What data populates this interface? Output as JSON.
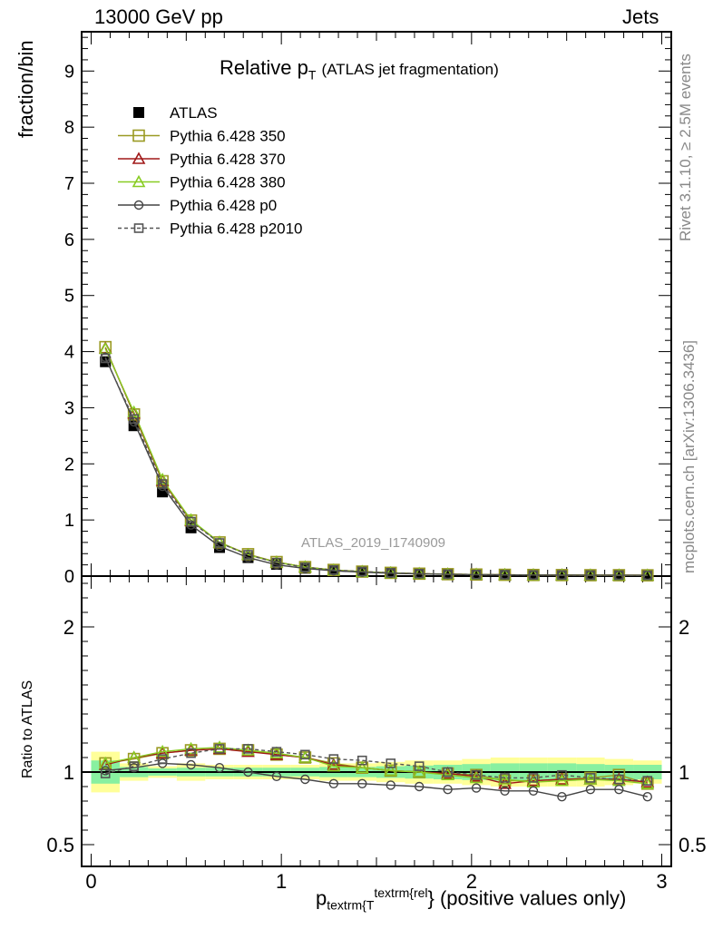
{
  "header": {
    "left": "13000 GeV pp",
    "right": "Jets"
  },
  "side_labels": {
    "rivet": "Rivet 3.1.10, ≥ 2.5M events",
    "mcplots": "mcplots.cern.ch [arXiv:1306.3436]"
  },
  "watermark": "ATLAS_2019_I1740909",
  "chart_data": [
    {
      "type": "line",
      "panel": "main",
      "title": "Relative p",
      "title_sub": "T",
      "title_suffix": "(ATLAS jet fragmentation)",
      "ylabel": "fraction/bin",
      "xlim": [
        -0.05,
        3.05
      ],
      "ylim": [
        0,
        9.7
      ],
      "y_ticks": [
        "0",
        "1",
        "2",
        "3",
        "4",
        "5",
        "6",
        "7",
        "8",
        "9"
      ],
      "x": [
        0.075,
        0.225,
        0.375,
        0.525,
        0.675,
        0.825,
        0.975,
        1.125,
        1.275,
        1.425,
        1.575,
        1.725,
        1.875,
        2.025,
        2.175,
        2.325,
        2.475,
        2.625,
        2.775,
        2.925
      ],
      "series": [
        {
          "name": "ATLAS",
          "color": "#000000",
          "marker": "filled-square",
          "values": [
            3.82,
            2.68,
            1.5,
            0.86,
            0.51,
            0.33,
            0.21,
            0.14,
            0.1,
            0.075,
            0.055,
            0.042,
            0.034,
            0.028,
            0.024,
            0.021,
            0.019,
            0.017,
            0.016,
            0.015
          ]
        },
        {
          "name": "Pythia 6.428 350",
          "color": "#9a9a22",
          "marker": "open-square",
          "values": [
            4.08,
            2.88,
            1.69,
            0.99,
            0.6,
            0.39,
            0.25,
            0.16,
            0.11,
            0.08,
            0.058,
            0.043,
            0.034,
            0.028,
            0.023,
            0.02,
            0.018,
            0.016,
            0.016,
            0.014
          ]
        },
        {
          "name": "Pythia 6.428 370",
          "color": "#a01818",
          "marker": "open-triangle",
          "values": [
            4.06,
            2.9,
            1.7,
            0.99,
            0.6,
            0.38,
            0.245,
            0.16,
            0.105,
            0.078,
            0.056,
            0.042,
            0.034,
            0.028,
            0.022,
            0.02,
            0.018,
            0.016,
            0.015,
            0.014
          ]
        },
        {
          "name": "Pythia 6.428 380",
          "color": "#88cc22",
          "marker": "open-triangle",
          "values": [
            4.05,
            2.92,
            1.72,
            1.0,
            0.6,
            0.38,
            0.245,
            0.16,
            0.105,
            0.078,
            0.056,
            0.042,
            0.034,
            0.027,
            0.023,
            0.02,
            0.018,
            0.016,
            0.015,
            0.014
          ]
        },
        {
          "name": "Pythia 6.428 p0",
          "color": "#444444",
          "marker": "open-circle",
          "values": [
            3.9,
            2.75,
            1.6,
            0.91,
            0.53,
            0.33,
            0.2,
            0.135,
            0.093,
            0.069,
            0.05,
            0.038,
            0.03,
            0.025,
            0.021,
            0.018,
            0.016,
            0.015,
            0.014,
            0.013
          ]
        },
        {
          "name": "Pythia 6.428 p2010",
          "color": "#555555",
          "marker": "open-square-dashed",
          "values": [
            3.88,
            2.8,
            1.64,
            0.97,
            0.59,
            0.38,
            0.24,
            0.156,
            0.109,
            0.081,
            0.058,
            0.044,
            0.034,
            0.027,
            0.023,
            0.02,
            0.019,
            0.016,
            0.015,
            0.014
          ]
        }
      ]
    },
    {
      "type": "line",
      "panel": "ratio",
      "ylabel": "Ratio to ATLAS",
      "xlabel": "p",
      "xlabel_sub": "textrm{T",
      "xlabel_sup": "textrm{rel",
      "xlabel_suffix": "} (positive values only)",
      "xlim": [
        -0.05,
        3.05
      ],
      "ylim": [
        0.35,
        2.35
      ],
      "y_ticks": [
        0.5,
        1,
        2
      ],
      "y_tick_labels": [
        "0.5",
        "1",
        "2"
      ],
      "x_ticks": [
        0,
        1,
        2,
        3
      ],
      "x_tick_labels": [
        "0",
        "1",
        "2",
        "3"
      ],
      "x": [
        0.075,
        0.225,
        0.375,
        0.525,
        0.675,
        0.825,
        0.975,
        1.125,
        1.275,
        1.425,
        1.575,
        1.725,
        1.875,
        2.025,
        2.175,
        2.325,
        2.475,
        2.625,
        2.775,
        2.925
      ],
      "bands": {
        "x_edges": [
          0.0,
          0.15,
          0.3,
          0.45,
          0.6,
          0.75,
          0.9,
          1.05,
          1.2,
          1.35,
          1.5,
          1.65,
          1.8,
          1.95,
          2.1,
          2.25,
          2.4,
          2.55,
          2.7,
          2.85,
          3.0
        ],
        "yellow": [
          0.14,
          0.06,
          0.04,
          0.06,
          0.05,
          0.05,
          0.05,
          0.05,
          0.06,
          0.06,
          0.07,
          0.08,
          0.08,
          0.09,
          0.1,
          0.1,
          0.1,
          0.1,
          0.09,
          0.08
        ],
        "green": [
          0.08,
          0.035,
          0.025,
          0.03,
          0.03,
          0.03,
          0.03,
          0.03,
          0.035,
          0.035,
          0.04,
          0.045,
          0.05,
          0.055,
          0.06,
          0.06,
          0.06,
          0.055,
          0.05,
          0.05
        ]
      },
      "series": [
        {
          "name": "Pythia 6.428 350",
          "color": "#9a9a22",
          "marker": "open-square",
          "values": [
            1.06,
            1.09,
            1.13,
            1.15,
            1.16,
            1.15,
            1.12,
            1.1,
            1.06,
            1.03,
            1.01,
            1.0,
            0.99,
            0.98,
            0.94,
            0.94,
            0.95,
            0.96,
            0.98,
            0.92
          ]
        },
        {
          "name": "Pythia 6.428 370",
          "color": "#a01818",
          "marker": "open-triangle",
          "values": [
            1.05,
            1.1,
            1.13,
            1.15,
            1.16,
            1.14,
            1.12,
            1.1,
            1.05,
            1.03,
            1.01,
            1.0,
            0.99,
            0.97,
            0.92,
            0.94,
            0.95,
            0.95,
            0.95,
            0.93
          ]
        },
        {
          "name": "Pythia 6.428 380",
          "color": "#88cc22",
          "marker": "open-triangle",
          "values": [
            1.06,
            1.1,
            1.14,
            1.16,
            1.17,
            1.15,
            1.13,
            1.1,
            1.04,
            1.03,
            1.01,
            1.0,
            0.98,
            0.96,
            0.95,
            0.93,
            0.94,
            0.95,
            0.94,
            0.92
          ]
        },
        {
          "name": "Pythia 6.428 p0",
          "color": "#444444",
          "marker": "open-circle",
          "values": [
            1.01,
            1.03,
            1.06,
            1.05,
            1.03,
            1.0,
            0.97,
            0.95,
            0.92,
            0.92,
            0.91,
            0.9,
            0.88,
            0.89,
            0.87,
            0.87,
            0.83,
            0.88,
            0.88,
            0.83
          ]
        },
        {
          "name": "Pythia 6.428 p2010",
          "color": "#555555",
          "marker": "open-square-dashed",
          "values": [
            0.99,
            1.04,
            1.09,
            1.13,
            1.16,
            1.16,
            1.14,
            1.12,
            1.09,
            1.08,
            1.06,
            1.04,
            1.0,
            0.98,
            0.96,
            0.96,
            0.98,
            0.96,
            0.95,
            0.94
          ]
        }
      ]
    }
  ]
}
